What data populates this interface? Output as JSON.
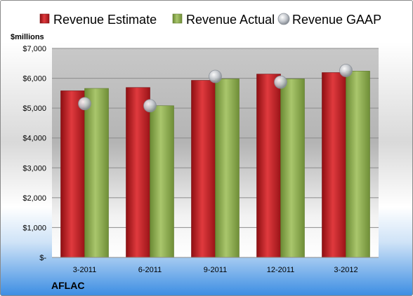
{
  "chart_data": {
    "type": "bar",
    "unit_label": "$millions",
    "categories": [
      "3-2011",
      "6-2011",
      "9-2011",
      "12-2011",
      "3-2012"
    ],
    "series": [
      {
        "name": "Revenue Estimate",
        "kind": "bar",
        "color": "#c0171c",
        "values": [
          5580,
          5690,
          5930,
          6140,
          6190
        ]
      },
      {
        "name": "Revenue Actual",
        "kind": "bar",
        "color": "#8fae4f",
        "values": [
          5660,
          5080,
          5980,
          5980,
          6240
        ]
      },
      {
        "name": "Revenue GAAP",
        "kind": "marker",
        "color": "#b8bdc4",
        "values": [
          5150,
          5080,
          6060,
          5870,
          6260
        ]
      }
    ],
    "y_ticks": [
      "$-",
      "$1,000",
      "$2,000",
      "$3,000",
      "$4,000",
      "$5,000",
      "$6,000",
      "$7,000"
    ],
    "ylim": [
      0,
      7000
    ],
    "grid": true,
    "legend_position": "top",
    "company": "AFLAC"
  }
}
